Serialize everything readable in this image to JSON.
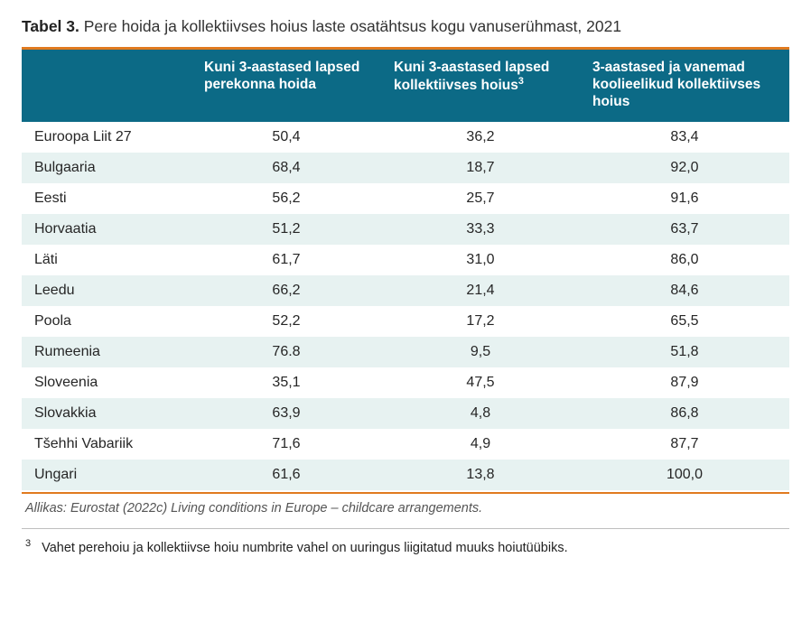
{
  "title": {
    "bold": "Tabel 3.",
    "rest": " Pere hoida ja kollektiivses hoius laste osatähtsus kogu vanuserühmast, 2021"
  },
  "table": {
    "type": "table",
    "header_bg": "#0c6a86",
    "header_fg": "#ffffff",
    "row_even_bg": "#e7f2f1",
    "row_odd_bg": "#ffffff",
    "top_rule_color": "#e07a1f",
    "columns": [
      {
        "label": ""
      },
      {
        "label_line1": "Kuni 3-aastased lapsed",
        "label_line2": "perekonna hoida"
      },
      {
        "label_line1": "Kuni 3-aastased lapsed",
        "label_line2": "kollektiivses hoius",
        "sup": "3"
      },
      {
        "label_line1": "3-aastased ja vanemad",
        "label_line2": "koolieelikud kollektiivses hoius"
      }
    ],
    "rows": [
      {
        "label": "Euroopa Liit 27",
        "v1": "50,4",
        "v2": "36,2",
        "v3": "83,4"
      },
      {
        "label": "Bulgaaria",
        "v1": "68,4",
        "v2": "18,7",
        "v3": "92,0"
      },
      {
        "label": "Eesti",
        "v1": "56,2",
        "v2": "25,7",
        "v3": "91,6"
      },
      {
        "label": "Horvaatia",
        "v1": "51,2",
        "v2": "33,3",
        "v3": "63,7"
      },
      {
        "label": "Läti",
        "v1": "61,7",
        "v2": "31,0",
        "v3": "86,0"
      },
      {
        "label": "Leedu",
        "v1": "66,2",
        "v2": "21,4",
        "v3": "84,6"
      },
      {
        "label": "Poola",
        "v1": "52,2",
        "v2": "17,2",
        "v3": "65,5"
      },
      {
        "label": "Rumeenia",
        "v1": "76.8",
        "v2": "9,5",
        "v3": "51,8"
      },
      {
        "label": "Sloveenia",
        "v1": "35,1",
        "v2": "47,5",
        "v3": "87,9"
      },
      {
        "label": "Slovakkia",
        "v1": "63,9",
        "v2": "4,8",
        "v3": "86,8"
      },
      {
        "label": "Tšehhi Vabariik",
        "v1": "71,6",
        "v2": "4,9",
        "v3": "87,7"
      },
      {
        "label": "Ungari",
        "v1": "61,6",
        "v2": "13,8",
        "v3": "100,0"
      }
    ]
  },
  "source": "Allikas: Eurostat (2022c) Living conditions in Europe – childcare arrangements.",
  "footnote": {
    "mark": "3",
    "text": "Vahet perehoiu ja kollektiivse hoiu numbrite vahel on uuringus liigitatud muuks hoiutüübiks."
  }
}
